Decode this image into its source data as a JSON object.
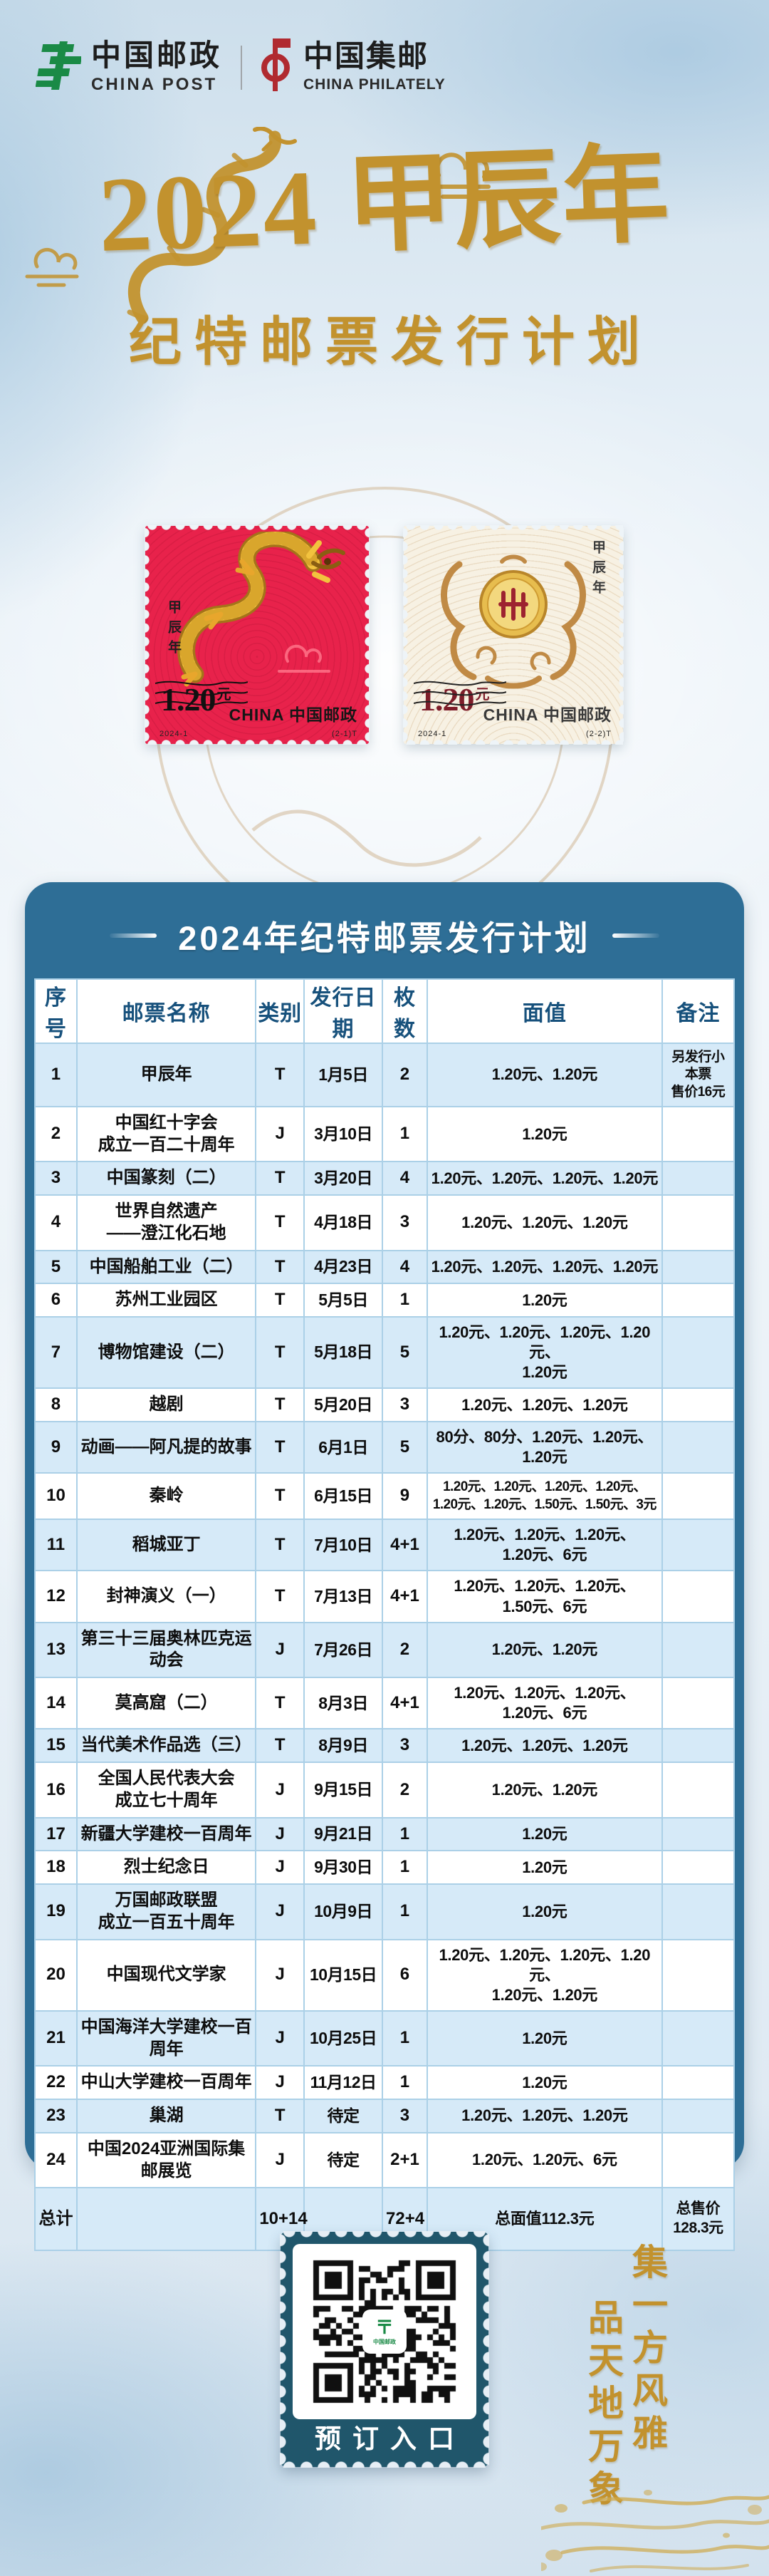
{
  "header": {
    "china_post": {
      "cn": "中国邮政",
      "en": "CHINA POST"
    },
    "china_philately": {
      "cn": "中国集邮",
      "en": "CHINA PHILATELY"
    }
  },
  "hero": {
    "title": "2024 甲辰年",
    "subtitle": "纪特邮票发行计划"
  },
  "stamps": [
    {
      "year_mark": "甲辰年",
      "denomination": "1.20",
      "unit": "元",
      "country_en": "CHINA",
      "country_cn": "中国邮政",
      "issue_code": "2024-1",
      "serial_code": "(2-1)T"
    },
    {
      "year_mark": "甲辰年",
      "denomination": "1.20",
      "unit": "元",
      "country_en": "CHINA",
      "country_cn": "中国邮政",
      "issue_code": "2024-1",
      "serial_code": "(2-2)T"
    }
  ],
  "table": {
    "title": "2024年纪特邮票发行计划",
    "columns": [
      "序号",
      "邮票名称",
      "类别",
      "发行日期",
      "枚数",
      "面值",
      "备注"
    ],
    "rows": [
      {
        "seq": "1",
        "name": "甲辰年",
        "type": "T",
        "date": "1月5日",
        "count": "2",
        "value": "1.20元、1.20元",
        "note": "另发行小本票\n售价16元"
      },
      {
        "seq": "2",
        "name": "中国红十字会\n成立一百二十周年",
        "type": "J",
        "date": "3月10日",
        "count": "1",
        "value": "1.20元",
        "note": ""
      },
      {
        "seq": "3",
        "name": "中国篆刻（二）",
        "type": "T",
        "date": "3月20日",
        "count": "4",
        "value": "1.20元、1.20元、1.20元、1.20元",
        "note": ""
      },
      {
        "seq": "4",
        "name": "世界自然遗产\n——澄江化石地",
        "type": "T",
        "date": "4月18日",
        "count": "3",
        "value": "1.20元、1.20元、1.20元",
        "note": ""
      },
      {
        "seq": "5",
        "name": "中国船舶工业（二）",
        "type": "T",
        "date": "4月23日",
        "count": "4",
        "value": "1.20元、1.20元、1.20元、1.20元",
        "note": ""
      },
      {
        "seq": "6",
        "name": "苏州工业园区",
        "type": "T",
        "date": "5月5日",
        "count": "1",
        "value": "1.20元",
        "note": ""
      },
      {
        "seq": "7",
        "name": "博物馆建设（二）",
        "type": "T",
        "date": "5月18日",
        "count": "5",
        "value": "1.20元、1.20元、1.20元、1.20元、\n1.20元",
        "note": ""
      },
      {
        "seq": "8",
        "name": "越剧",
        "type": "T",
        "date": "5月20日",
        "count": "3",
        "value": "1.20元、1.20元、1.20元",
        "note": ""
      },
      {
        "seq": "9",
        "name": "动画——阿凡提的故事",
        "type": "T",
        "date": "6月1日",
        "count": "5",
        "value": "80分、80分、1.20元、1.20元、\n1.20元",
        "note": ""
      },
      {
        "seq": "10",
        "name": "秦岭",
        "type": "T",
        "date": "6月15日",
        "count": "9",
        "value": "1.20元、1.20元、1.20元、1.20元、\n1.20元、1.20元、1.50元、1.50元、3元",
        "note": ""
      },
      {
        "seq": "11",
        "name": "稻城亚丁",
        "type": "T",
        "date": "7月10日",
        "count": "4+1",
        "value": "1.20元、1.20元、1.20元、\n1.20元、6元",
        "note": ""
      },
      {
        "seq": "12",
        "name": "封神演义（一）",
        "type": "T",
        "date": "7月13日",
        "count": "4+1",
        "value": "1.20元、1.20元、1.20元、\n1.50元、6元",
        "note": ""
      },
      {
        "seq": "13",
        "name": "第三十三届奥林匹克运动会",
        "type": "J",
        "date": "7月26日",
        "count": "2",
        "value": "1.20元、1.20元",
        "note": ""
      },
      {
        "seq": "14",
        "name": "莫高窟（二）",
        "type": "T",
        "date": "8月3日",
        "count": "4+1",
        "value": "1.20元、1.20元、1.20元、\n1.20元、6元",
        "note": ""
      },
      {
        "seq": "15",
        "name": "当代美术作品选（三）",
        "type": "T",
        "date": "8月9日",
        "count": "3",
        "value": "1.20元、1.20元、1.20元",
        "note": ""
      },
      {
        "seq": "16",
        "name": "全国人民代表大会\n成立七十周年",
        "type": "J",
        "date": "9月15日",
        "count": "2",
        "value": "1.20元、1.20元",
        "note": ""
      },
      {
        "seq": "17",
        "name": "新疆大学建校一百周年",
        "type": "J",
        "date": "9月21日",
        "count": "1",
        "value": "1.20元",
        "note": ""
      },
      {
        "seq": "18",
        "name": "烈士纪念日",
        "type": "J",
        "date": "9月30日",
        "count": "1",
        "value": "1.20元",
        "note": ""
      },
      {
        "seq": "19",
        "name": "万国邮政联盟\n成立一百五十周年",
        "type": "J",
        "date": "10月9日",
        "count": "1",
        "value": "1.20元",
        "note": ""
      },
      {
        "seq": "20",
        "name": "中国现代文学家",
        "type": "J",
        "date": "10月15日",
        "count": "6",
        "value": "1.20元、1.20元、1.20元、1.20元、\n1.20元、1.20元",
        "note": ""
      },
      {
        "seq": "21",
        "name": "中国海洋大学建校一百周年",
        "type": "J",
        "date": "10月25日",
        "count": "1",
        "value": "1.20元",
        "note": ""
      },
      {
        "seq": "22",
        "name": "中山大学建校一百周年",
        "type": "J",
        "date": "11月12日",
        "count": "1",
        "value": "1.20元",
        "note": ""
      },
      {
        "seq": "23",
        "name": "巢湖",
        "type": "T",
        "date": "待定",
        "count": "3",
        "value": "1.20元、1.20元、1.20元",
        "note": ""
      },
      {
        "seq": "24",
        "name": "中国2024亚洲国际集邮展览",
        "type": "J",
        "date": "待定",
        "count": "2+1",
        "value": "1.20元、1.20元、6元",
        "note": ""
      }
    ],
    "total": {
      "label": "总计",
      "name": "",
      "type": "10+14",
      "date": "",
      "count": "72+4",
      "value": "总面值112.3元",
      "note": "总售价\n128.3元"
    }
  },
  "footer": {
    "qr_label": "预订入口",
    "qr_logo_cn": "中国邮政",
    "slogan_right": "集一方风雅",
    "slogan_left": "品天地万象"
  },
  "colors": {
    "panel_blue": "#2e6e96",
    "row_blue": "#d6eaf8",
    "gold": "#c2922e",
    "stamp_red": "#e8224b",
    "stamp_cream": "#f7f1e3",
    "qr_teal": "#20566b",
    "post_green": "#1a8a46",
    "philately_red": "#b02a30"
  }
}
